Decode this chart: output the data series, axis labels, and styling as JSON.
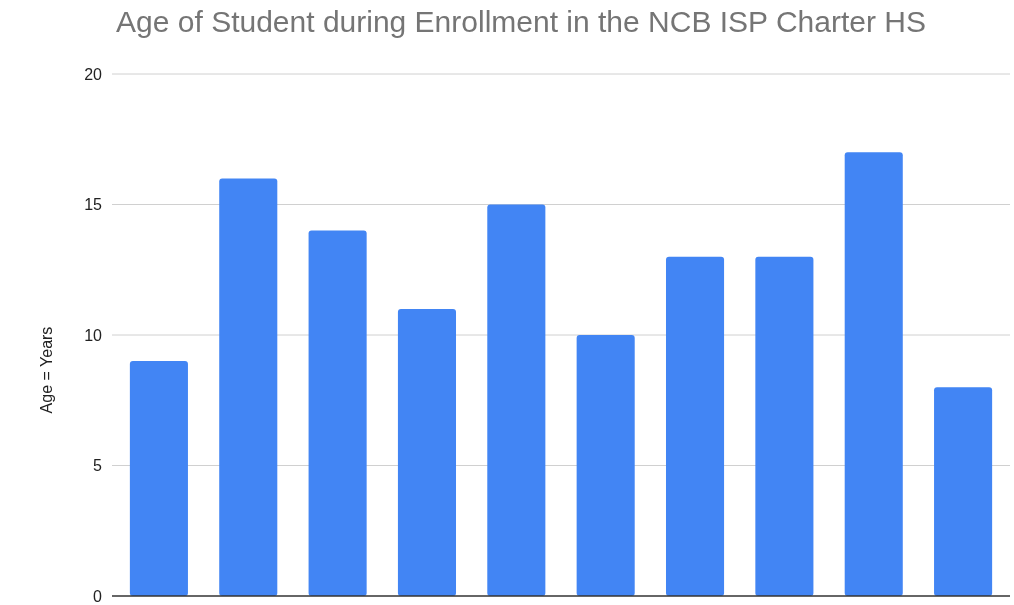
{
  "chart_data": {
    "type": "bar",
    "title": "Age of Student during Enrollment in the NCB ISP Charter HS",
    "ylabel": "Age = Years",
    "categories": [
      null,
      null,
      null,
      null,
      null,
      null,
      null,
      null,
      null,
      null
    ],
    "values": [
      9,
      16,
      14,
      11,
      15,
      10,
      13,
      13,
      17,
      8
    ],
    "color": "#4285f4",
    "ylim": [
      0,
      20
    ],
    "yticks": [
      0,
      5,
      10,
      15,
      20
    ],
    "grid": "y"
  }
}
